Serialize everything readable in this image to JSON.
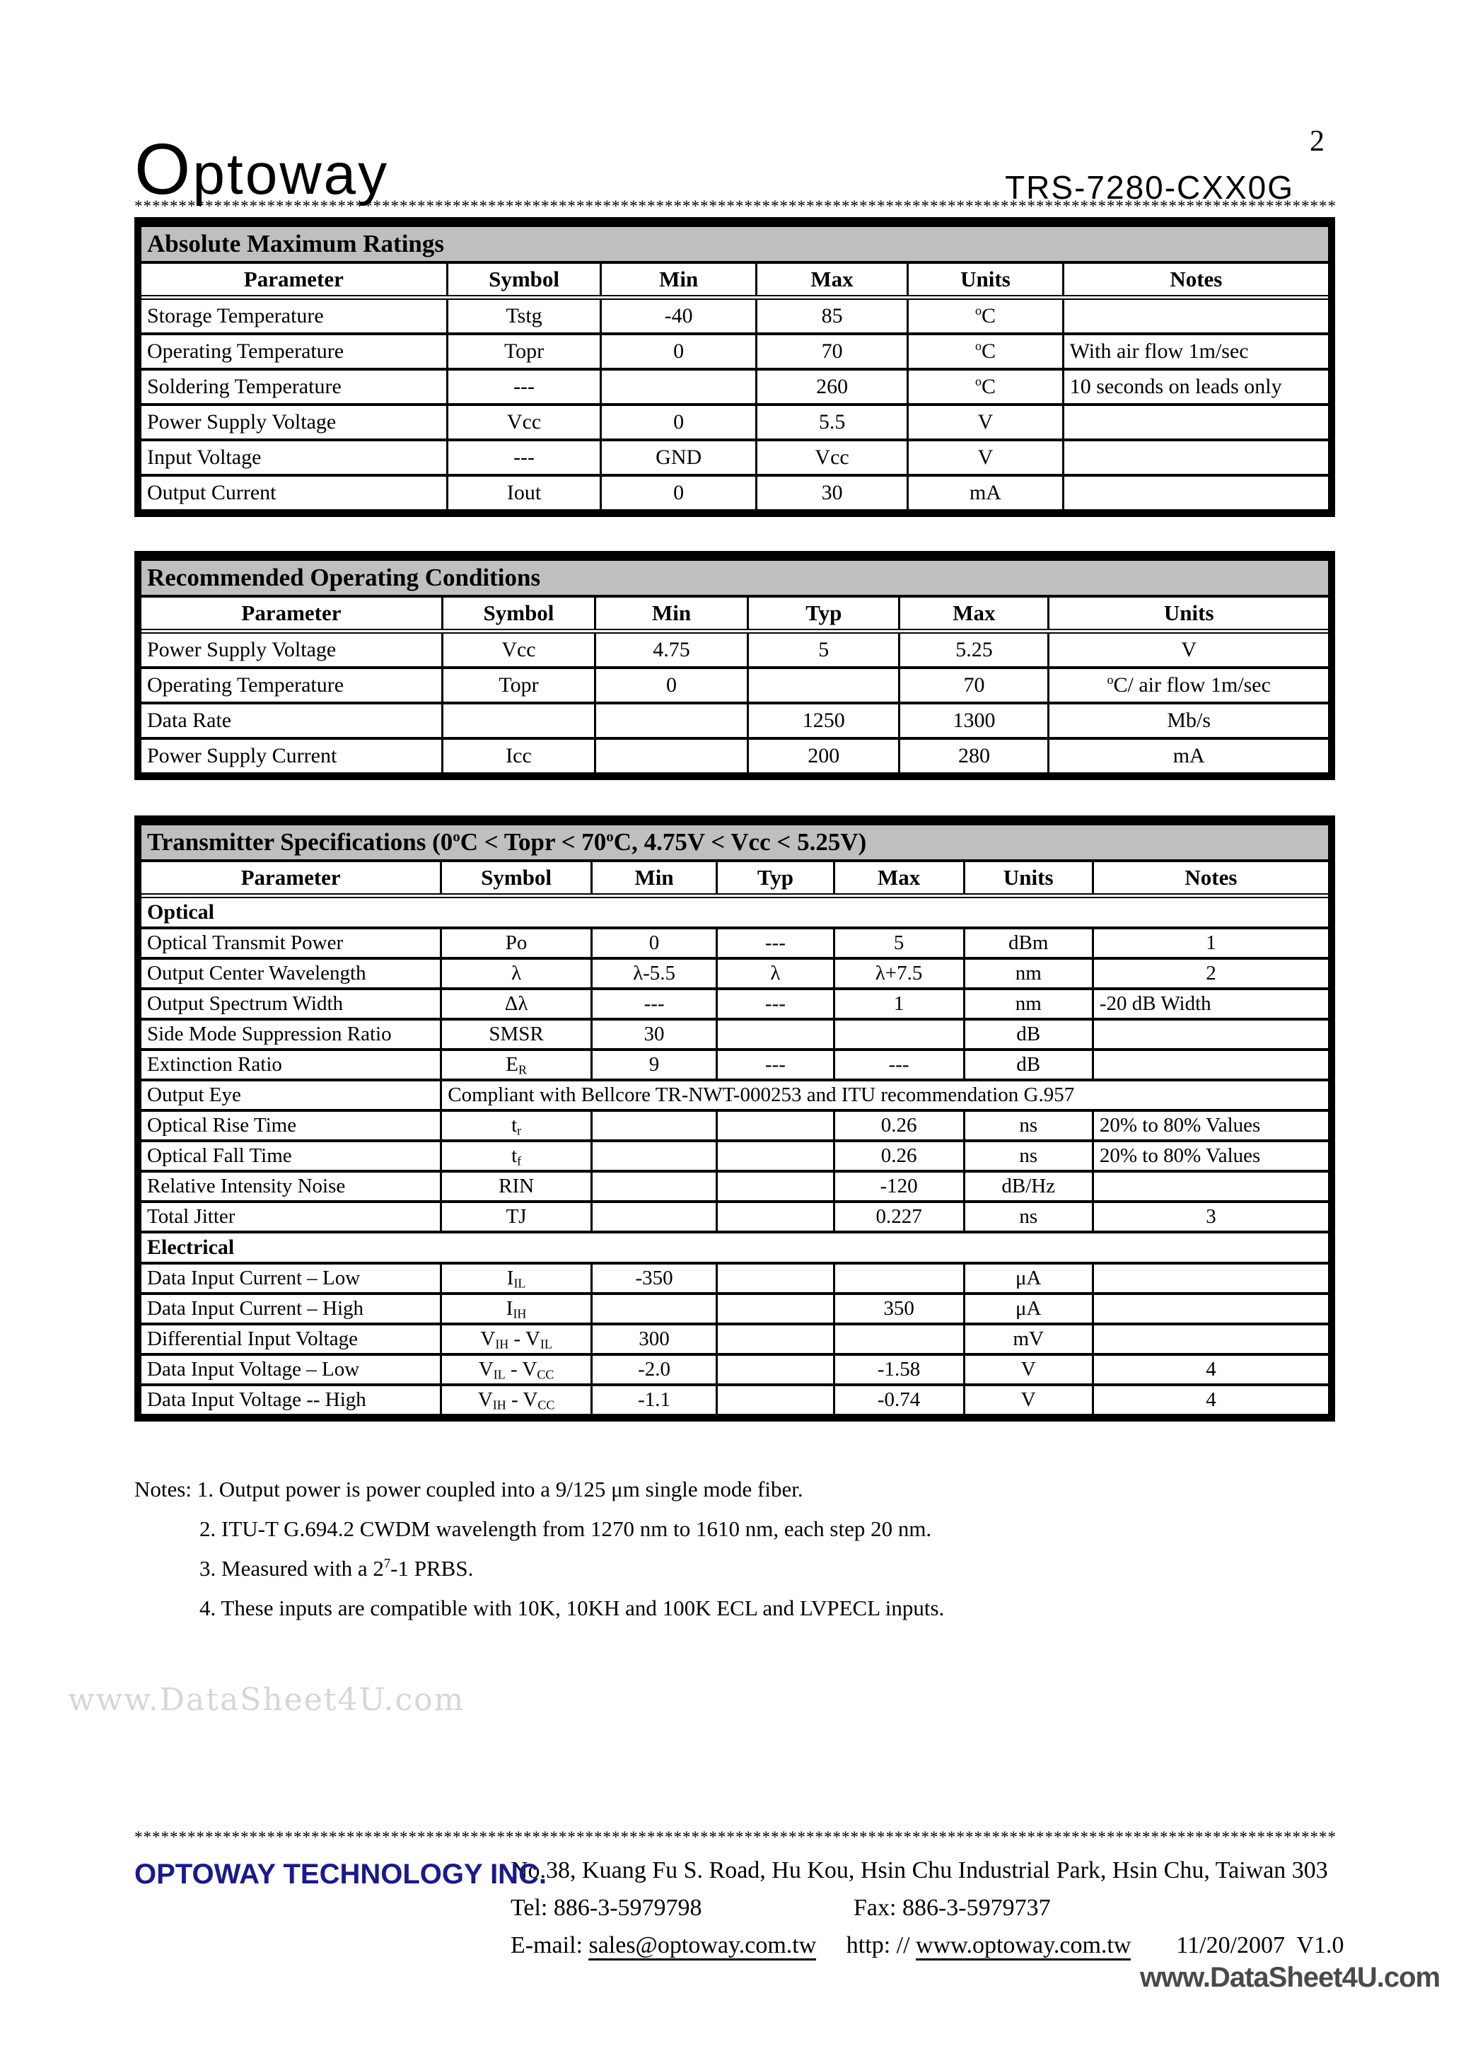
{
  "page": {
    "logo_initial": "O",
    "logo_rest": "ptoway",
    "number": "2",
    "product": "TRS-7280-CXX0G",
    "separator": "************************************************************************************************************************************************************************************"
  },
  "tables": [
    {
      "title": "Absolute Maximum Ratings",
      "columns": [
        "Parameter",
        "Symbol",
        "Min",
        "Max",
        "Units",
        "Notes"
      ],
      "rows": [
        [
          "Storage Temperature",
          "Tstg",
          "-40",
          "85",
          "^{o}C",
          ""
        ],
        [
          "Operating Temperature",
          "Topr",
          "0",
          "70",
          "^{o}C",
          "With air flow 1m/sec"
        ],
        [
          "Soldering Temperature",
          "---",
          "",
          "260",
          "^{o}C",
          "10 seconds on leads only"
        ],
        [
          "Power Supply Voltage",
          "Vcc",
          "0",
          "5.5",
          "V",
          ""
        ],
        [
          "Input Voltage",
          "---",
          "GND",
          "Vcc",
          "V",
          ""
        ],
        [
          "Output Current",
          "Iout",
          "0",
          "30",
          "mA",
          ""
        ]
      ]
    },
    {
      "title": "Recommended Operating Conditions",
      "columns": [
        "Parameter",
        "Symbol",
        "Min",
        "Typ",
        "Max",
        "Units"
      ],
      "rows": [
        [
          "Power Supply Voltage",
          "Vcc",
          "4.75",
          "5",
          "5.25",
          "V"
        ],
        [
          "Operating Temperature",
          "Topr",
          "0",
          "",
          "70",
          "^{o}C/ air flow 1m/sec"
        ],
        [
          "Data Rate",
          "",
          "",
          "1250",
          "1300",
          "Mb/s"
        ],
        [
          "Power Supply Current",
          "Icc",
          "",
          "200",
          "280",
          "mA"
        ]
      ]
    },
    {
      "title": "Transmitter Specifications (0^{o}C < Topr < 70^{o}C, 4.75V < Vcc < 5.25V)",
      "columns": [
        "Parameter",
        "Symbol",
        "Min",
        "Typ",
        "Max",
        "Units",
        "Notes"
      ],
      "rows": [
        {
          "section": "Optical"
        },
        [
          "Optical Transmit Power",
          "Po",
          "0",
          "---",
          "5",
          "dBm",
          "1"
        ],
        [
          "Output Center Wavelength",
          "λ",
          "λ-5.5",
          "λ",
          "λ+7.5",
          "nm",
          "2"
        ],
        [
          "Output Spectrum Width",
          "Δλ",
          "---",
          "---",
          "1",
          "nm",
          "-20 dB Width"
        ],
        [
          "Side Mode Suppression Ratio",
          "SMSR",
          "30",
          "",
          "",
          "dB",
          ""
        ],
        [
          "Extinction Ratio",
          "E_{R}",
          "9",
          "---",
          "---",
          "dB",
          ""
        ],
        {
          "label": "Output Eye",
          "span": "Compliant with Bellcore TR-NWT-000253 and ITU recommendation G.957"
        },
        [
          "Optical Rise Time",
          "t_{r}",
          "",
          "",
          "0.26",
          "ns",
          "20% to 80% Values"
        ],
        [
          "Optical Fall Time",
          "t_{f}",
          "",
          "",
          "0.26",
          "ns",
          "20% to 80% Values"
        ],
        [
          "Relative Intensity Noise",
          "RIN",
          "",
          "",
          "-120",
          "dB/Hz",
          ""
        ],
        [
          "Total Jitter",
          "TJ",
          "",
          "",
          "0.227",
          "ns",
          "3"
        ],
        {
          "section": "Electrical"
        },
        [
          "Data Input Current – Low",
          "I_{IL}",
          "-350",
          "",
          "",
          "μA",
          ""
        ],
        [
          "Data Input Current – High",
          "I_{IH}",
          "",
          "",
          "350",
          "μA",
          ""
        ],
        [
          "Differential Input Voltage",
          "V_{IH} - V_{IL}",
          "300",
          "",
          "",
          "mV",
          ""
        ],
        [
          "Data Input Voltage – Low",
          "V_{IL} - V_{CC}",
          "-2.0",
          "",
          "-1.58",
          "V",
          "4"
        ],
        [
          "Data Input Voltage -- High",
          "V_{IH} - V_{CC}",
          "-1.1",
          "",
          "-0.74",
          "V",
          "4"
        ]
      ]
    }
  ],
  "notes": {
    "heading": "Notes:",
    "items": [
      "1. Output power is power coupled into a 9/125 μm single mode fiber.",
      "2. ITU-T G.694.2 CWDM wavelength from 1270 nm to 1610 nm, each step 20 nm.",
      "3. Measured with a 2^{7}-1 PRBS.",
      "4. These inputs are compatible with 10K, 10KH and 100K ECL and LVPECL inputs."
    ]
  },
  "footer": {
    "company": "OPTOWAY TECHNOLOGY INC.",
    "company_color": "#1a1a8c",
    "address": "No.38, Kuang Fu S. Road, Hu Kou, Hsin Chu Industrial Park, Hsin Chu, Taiwan 303",
    "tel": "Tel: 886-3-5979798",
    "fax": "Fax: 886-3-5979737",
    "email_label": "E-mail: ",
    "email": "sales@optoway.com.tw",
    "http_label": "  http: // ",
    "url": "www.optoway.com.tw",
    "version": "11/20/2007  V1.0"
  },
  "watermarks": {
    "left": "www.DataSheet4U.com",
    "bottom": "www.DataSheet4U.com"
  }
}
